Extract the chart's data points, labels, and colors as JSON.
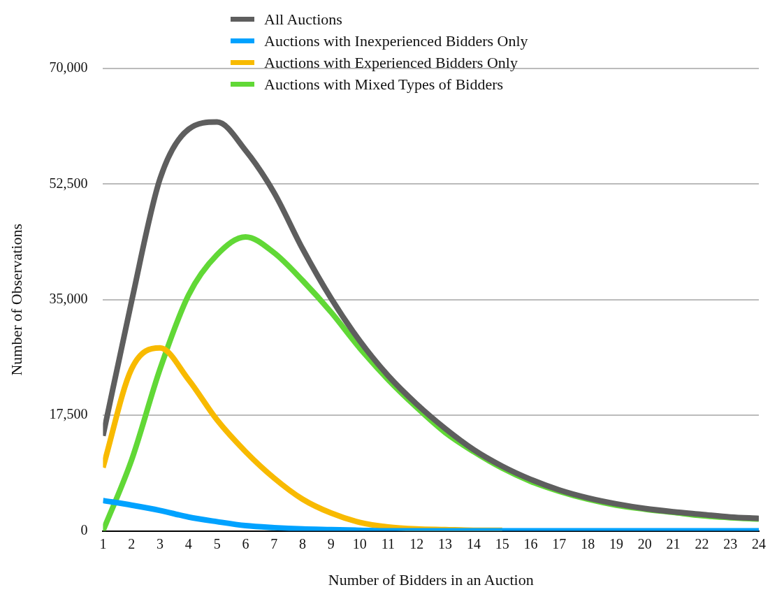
{
  "chart_data": {
    "type": "line",
    "xlabel": "Number of Bidders in an Auction",
    "ylabel": "Number of Observations",
    "x": [
      1,
      2,
      3,
      4,
      5,
      6,
      7,
      8,
      9,
      10,
      11,
      12,
      13,
      14,
      15,
      16,
      17,
      18,
      19,
      20,
      21,
      22,
      23,
      24
    ],
    "xlim": [
      1,
      24
    ],
    "xticks": [
      1,
      2,
      3,
      4,
      5,
      6,
      7,
      8,
      9,
      10,
      11,
      12,
      13,
      14,
      15,
      16,
      17,
      18,
      19,
      20,
      21,
      22,
      23,
      24
    ],
    "series": [
      {
        "name": "All Auctions",
        "color": "#5e5e5e",
        "values": [
          14400,
          34700,
          53300,
          60800,
          61900,
          57600,
          51200,
          42700,
          35200,
          28800,
          23500,
          19200,
          15500,
          12300,
          9800,
          7800,
          6200,
          5000,
          4100,
          3400,
          2900,
          2500,
          2100,
          1900
        ]
      },
      {
        "name": "Auctions with Inexperienced Bidders Only",
        "color": "#00a2ff",
        "values": [
          4600,
          3900,
          3100,
          2100,
          1400,
          800,
          500,
          300,
          200,
          100,
          0,
          0,
          0,
          0,
          0,
          0,
          0,
          0,
          0,
          0,
          0,
          0,
          0,
          0
        ]
      },
      {
        "name": "Auctions with Experienced Bidders Only",
        "color": "#f8ba00",
        "values": [
          9600,
          24500,
          27700,
          22900,
          16800,
          12000,
          8000,
          4800,
          2700,
          1300,
          600,
          300,
          200,
          100,
          100,
          null,
          null,
          null,
          null,
          null,
          null,
          null,
          null,
          null
        ]
      },
      {
        "name": "Auctions with Mixed Types of Bidders",
        "color": "#61d836",
        "values": [
          0,
          10700,
          24500,
          35700,
          41800,
          44500,
          42100,
          37900,
          33100,
          27700,
          22900,
          18700,
          14900,
          12000,
          9500,
          7500,
          6000,
          4800,
          3900,
          3300,
          2800,
          2300,
          2000,
          1800
        ]
      }
    ],
    "ylim": [
      0,
      70000
    ],
    "yticks": [
      0,
      {
        "value": 17500,
        "label": "17,500"
      },
      {
        "value": 35000,
        "label": "35,000"
      },
      {
        "value": 52500,
        "label": "52,500"
      },
      {
        "value": 70000,
        "label": "70,000"
      }
    ],
    "grid": "y",
    "legend": "top",
    "marker": "none",
    "line_style": "solid"
  }
}
